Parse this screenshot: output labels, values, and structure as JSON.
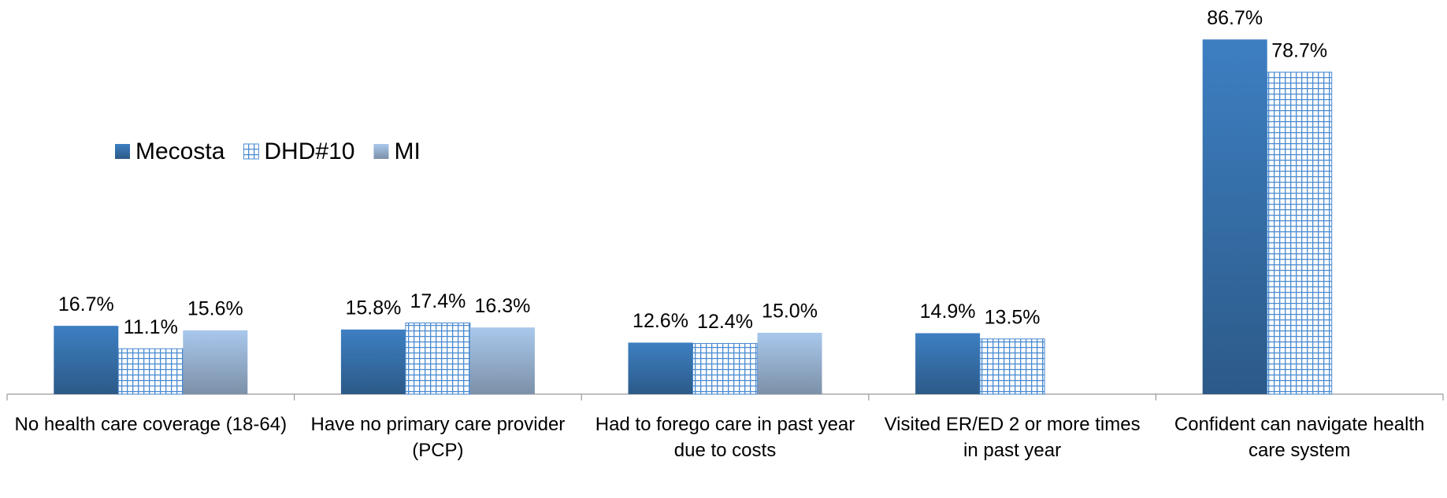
{
  "chart_data": {
    "type": "bar",
    "categories": [
      "No health care coverage (18-64)",
      "Have no primary care provider (PCP)",
      "Had to forego care in past year due to costs",
      "Visited ER/ED 2 or more times\nin past year",
      "Confident can navigate health care system"
    ],
    "series": [
      {
        "name": "Mecosta",
        "color": "#3a75b0",
        "values": [
          16.7,
          15.8,
          12.6,
          14.9,
          86.7
        ],
        "value_labels": [
          "16.7%",
          "15.8%",
          "12.6%",
          "14.9%",
          "86.7%"
        ]
      },
      {
        "name": "DHD#10",
        "color": "#4a8ad0",
        "pattern": "grid",
        "values": [
          11.1,
          17.4,
          12.4,
          13.5,
          78.7
        ],
        "value_labels": [
          "11.1%",
          "17.4%",
          "12.4%",
          "13.5%",
          "78.7%"
        ]
      },
      {
        "name": "MI",
        "color": "#9fbde3",
        "values": [
          15.6,
          16.3,
          15.0,
          null,
          null
        ],
        "value_labels": [
          "15.6%",
          "16.3%",
          "15.0%",
          null,
          null
        ]
      }
    ],
    "ylim": [
      0,
      100
    ],
    "legend": "left"
  }
}
